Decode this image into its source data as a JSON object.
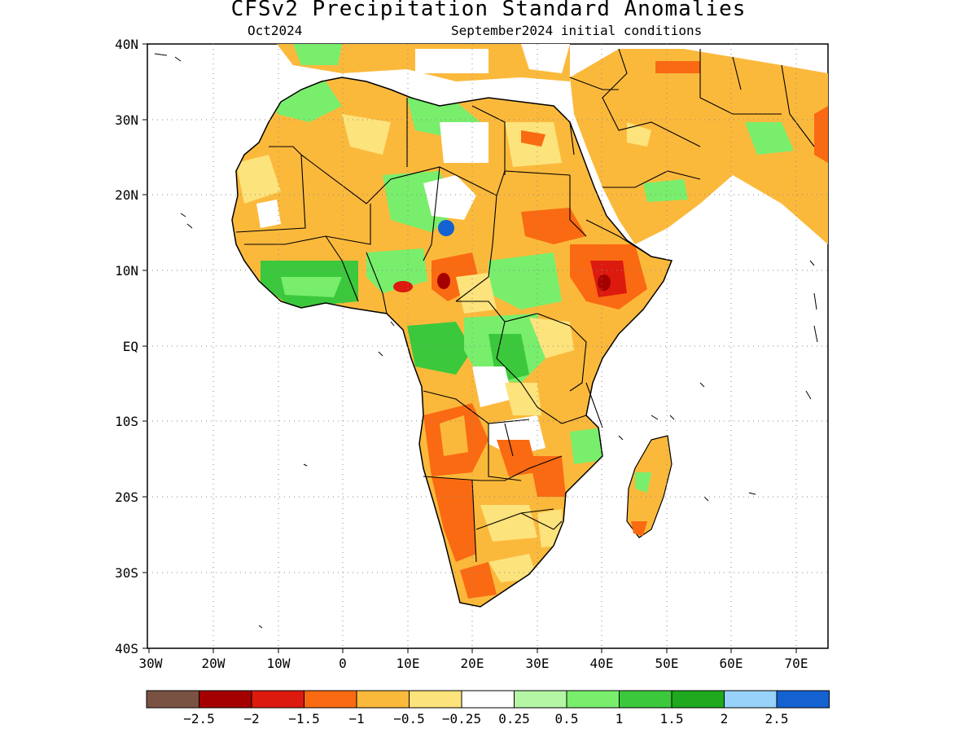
{
  "map": {
    "title": "CFSv2 Precipitation Standard Anomalies",
    "subtitle_left": "Oct2024",
    "subtitle_right": "September2024 initial conditions",
    "lat_labels": [
      "40N",
      "30N",
      "20N",
      "10N",
      "EQ",
      "10S",
      "20S",
      "30S",
      "40S"
    ],
    "lon_labels": [
      "30W",
      "20W",
      "10W",
      "0",
      "10E",
      "20E",
      "30E",
      "40E",
      "50E",
      "60E",
      "70E"
    ],
    "region": "Africa"
  },
  "colorbar": {
    "colors": [
      "#7a5244",
      "#a50000",
      "#dc1a0e",
      "#fa6a12",
      "#fbb93c",
      "#fde37c",
      "#ffffff",
      "#b4f6a4",
      "#78ee6c",
      "#3cc83c",
      "#1ea91e",
      "#96d2fa",
      "#1462d2"
    ],
    "labels": [
      "-2.5",
      "-2",
      "-1.5",
      "-1",
      "-0.5",
      "-0.25",
      "0.25",
      "0.5",
      "1",
      "1.5",
      "2",
      "2.5"
    ]
  }
}
